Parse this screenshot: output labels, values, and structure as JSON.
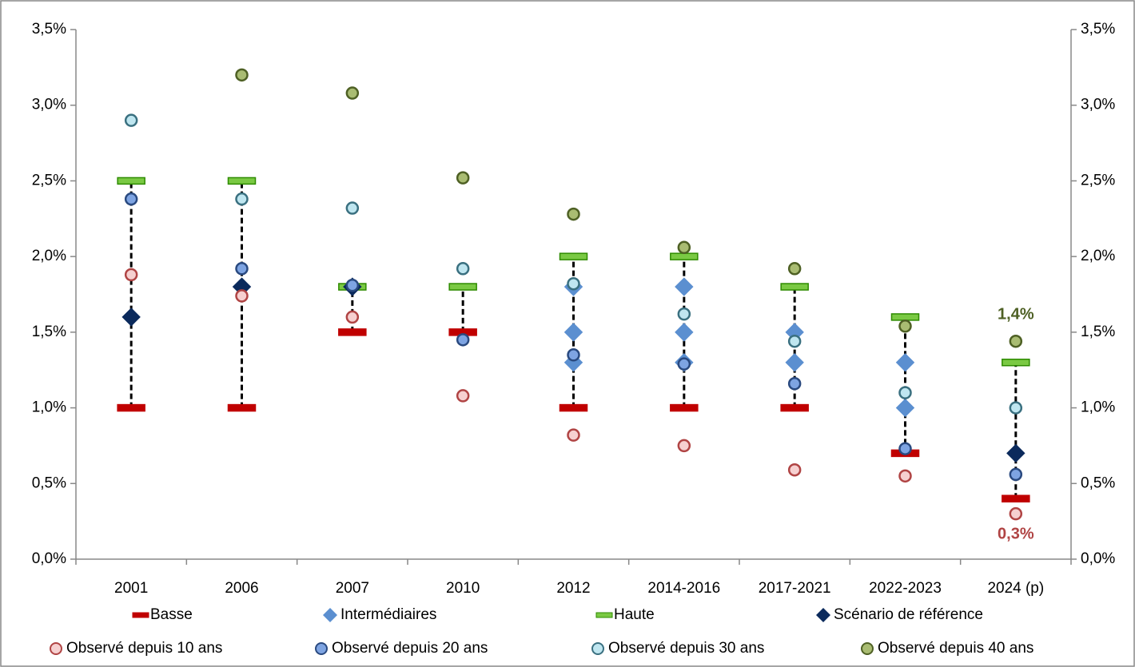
{
  "chart_data": {
    "type": "range-dot",
    "categories": [
      "2001",
      "2006",
      "2007",
      "2010",
      "2012",
      "2014-2016",
      "2017-2021",
      "2022-2023",
      "2024 (p)"
    ],
    "ylim": [
      0,
      3.5
    ],
    "yticks": [
      {
        "value": 0,
        "label": "0,0%"
      },
      {
        "value": 0.5,
        "label": "0,5%"
      },
      {
        "value": 1,
        "label": "1,0%"
      },
      {
        "value": 1.5,
        "label": "1,5%"
      },
      {
        "value": 2,
        "label": "2,0%"
      },
      {
        "value": 2.5,
        "label": "2,5%"
      },
      {
        "value": 3,
        "label": "3,0%"
      },
      {
        "value": 3.5,
        "label": "3,5%"
      }
    ],
    "y2lim": [
      0,
      3.5
    ],
    "y2ticks": [
      {
        "value": 0,
        "label": "0,0%"
      },
      {
        "value": 0.5,
        "label": "0,5%"
      },
      {
        "value": 1,
        "label": "1,0%"
      },
      {
        "value": 1.5,
        "label": "1,5%"
      },
      {
        "value": 2,
        "label": "2,0%"
      },
      {
        "value": 2.5,
        "label": "2,5%"
      },
      {
        "value": 3,
        "label": "3,0%"
      },
      {
        "value": 3.5,
        "label": "3,5%"
      }
    ],
    "series": [
      {
        "name": "Basse",
        "marker": "dash",
        "color": "#c00000",
        "edgecolor": "#c00000",
        "values": [
          1.0,
          1.0,
          1.5,
          1.5,
          1.0,
          1.0,
          1.0,
          0.7,
          0.4
        ]
      },
      {
        "name": "Intermédiaires",
        "marker": "diamond",
        "color": "#5b8fd0",
        "edgecolor": "#5b8fd0",
        "values": [
          [],
          [],
          [],
          [],
          [
            1.3,
            1.5,
            1.8
          ],
          [
            1.3,
            1.5,
            1.8
          ],
          [
            1.3,
            1.5
          ],
          [
            1.0,
            1.3
          ],
          []
        ]
      },
      {
        "name": "Haute",
        "marker": "dash",
        "color": "#7ac943",
        "edgecolor": "#2e8b00",
        "values": [
          2.5,
          2.5,
          1.8,
          1.8,
          2.0,
          2.0,
          1.8,
          1.6,
          1.3
        ]
      },
      {
        "name": "Scénario de référence",
        "marker": "diamond",
        "color": "#0b2a5c",
        "edgecolor": "#0b2a5c",
        "values": [
          1.6,
          1.8,
          1.8,
          null,
          null,
          null,
          null,
          null,
          0.7
        ]
      },
      {
        "name": "Observé depuis 10 ans",
        "marker": "circle",
        "color": "#f6d0d0",
        "edgecolor": "#b04444",
        "values": [
          1.88,
          1.74,
          1.6,
          1.08,
          0.82,
          0.75,
          0.59,
          0.55,
          0.3
        ],
        "value_labels": [
          null,
          null,
          null,
          null,
          null,
          null,
          null,
          null,
          "0,3%"
        ]
      },
      {
        "name": "Observé depuis 20 ans",
        "marker": "circle",
        "color": "#7ea4e2",
        "edgecolor": "#2a4a80",
        "values": [
          2.38,
          1.92,
          1.81,
          1.45,
          1.35,
          1.29,
          1.16,
          0.73,
          0.56
        ]
      },
      {
        "name": "Observé depuis 30 ans",
        "marker": "circle",
        "color": "#bfe6f0",
        "edgecolor": "#3a7080",
        "values": [
          2.9,
          2.38,
          2.32,
          1.92,
          1.82,
          1.62,
          1.44,
          1.1,
          1.0
        ]
      },
      {
        "name": "Observé depuis 40 ans",
        "marker": "circle",
        "color": "#a9bc72",
        "edgecolor": "#4e6024",
        "values": [
          null,
          3.2,
          3.08,
          2.52,
          2.28,
          2.06,
          1.92,
          1.54,
          1.44
        ],
        "value_labels": [
          null,
          null,
          null,
          null,
          null,
          null,
          null,
          null,
          "1,4%"
        ]
      }
    ]
  }
}
